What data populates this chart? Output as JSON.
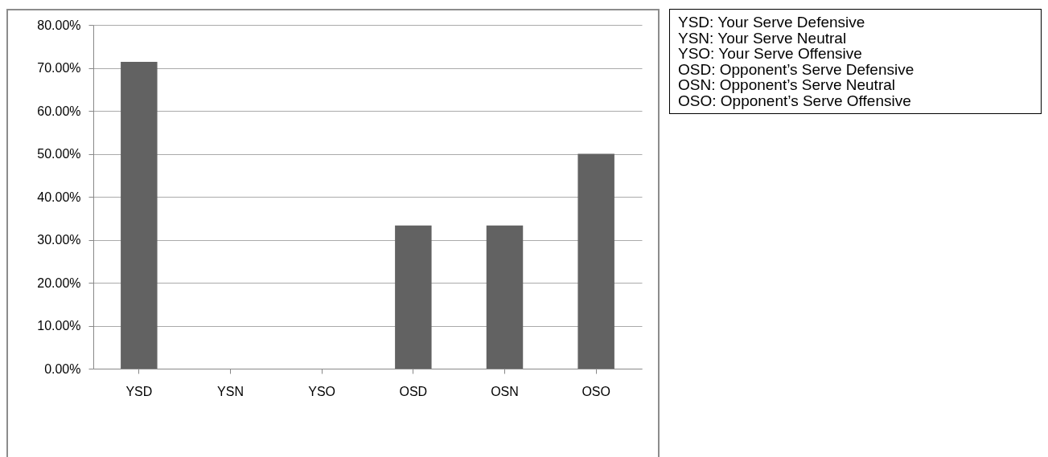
{
  "chart_data": {
    "type": "bar",
    "categories": [
      "YSD",
      "YSN",
      "YSO",
      "OSD",
      "OSN",
      "OSO"
    ],
    "values": [
      71.4,
      0,
      0,
      33.3,
      33.3,
      50
    ],
    "color": "#626262",
    "ylim": [
      0,
      80
    ],
    "yticks": [
      {
        "value": 0,
        "label": "0.00%"
      },
      {
        "value": 10,
        "label": "10.00%"
      },
      {
        "value": 20,
        "label": "20.00%"
      },
      {
        "value": 30,
        "label": "30.00%"
      },
      {
        "value": 40,
        "label": "40.00%"
      },
      {
        "value": 50,
        "label": "50.00%"
      },
      {
        "value": 60,
        "label": "60.00%"
      },
      {
        "value": 70,
        "label": "70.00%"
      },
      {
        "value": 80,
        "label": "80.00%"
      }
    ],
    "grid": "y",
    "annotations": [
      "YSD: Your Serve Defensive",
      "YSN: Your Serve Neutral",
      "YSO: Your Serve Offensive",
      "OSD: Opponent’s Serve Defensive",
      "OSN: Opponent’s Serve Neutral",
      "OSO: Opponent’s Serve Offensive"
    ]
  }
}
